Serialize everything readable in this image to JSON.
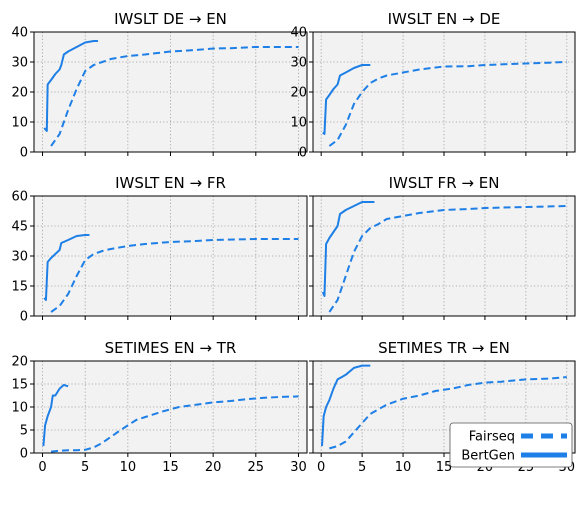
{
  "figure": {
    "colors": {
      "series": "#1e7fe6",
      "plot_bg": "#f2f2f2",
      "grid": "#9a9a9a"
    },
    "legend": {
      "placement": "lower-right of bottom-right panel",
      "entries": [
        {
          "label": "Fairseq",
          "style": "dashed"
        },
        {
          "label": "BertGen",
          "style": "solid"
        }
      ]
    }
  },
  "chart_data": [
    {
      "type": "line",
      "title": "IWSLT DE → EN",
      "xlim": [
        -1,
        31
      ],
      "ylim": [
        0,
        40
      ],
      "yticks": [
        0,
        10,
        20,
        30,
        40
      ],
      "xticks": [
        0,
        5,
        10,
        15,
        20,
        25,
        30
      ],
      "show_xtick_labels": false,
      "grid": true,
      "series": [
        {
          "name": "BertGen",
          "style": "solid",
          "x": [
            0.2,
            0.5,
            0.6,
            1.0,
            1.5,
            2.0,
            2.2,
            2.5,
            3.0,
            4.0,
            5.0,
            6.0,
            6.5
          ],
          "y": [
            8,
            7,
            22.5,
            24,
            26,
            27.5,
            29,
            32.5,
            33.5,
            35,
            36.5,
            37,
            37
          ]
        },
        {
          "name": "Fairseq",
          "style": "dashed",
          "x": [
            1,
            2,
            3,
            4,
            5,
            6,
            7,
            8,
            10,
            12,
            15,
            18,
            20,
            22,
            25,
            28,
            30
          ],
          "y": [
            2,
            6,
            14,
            21,
            27,
            29,
            30,
            31,
            32,
            32.5,
            33.5,
            34,
            34.5,
            34.6,
            35,
            35,
            35
          ]
        }
      ]
    },
    {
      "type": "line",
      "title": "IWSLT EN → DE",
      "xlim": [
        -1,
        31
      ],
      "ylim": [
        0,
        40
      ],
      "yticks": [
        0,
        10,
        20,
        30,
        40
      ],
      "xticks": [
        0,
        5,
        10,
        15,
        20,
        25,
        30
      ],
      "show_xtick_labels": false,
      "grid": true,
      "series": [
        {
          "name": "BertGen",
          "style": "solid",
          "x": [
            0.2,
            0.4,
            0.6,
            1.0,
            1.5,
            2.0,
            2.3,
            3.0,
            4.0,
            5.0,
            6.0
          ],
          "y": [
            6.5,
            6,
            17.5,
            19,
            21,
            22.5,
            25.5,
            26.5,
            28,
            29,
            29
          ]
        },
        {
          "name": "Fairseq",
          "style": "dashed",
          "x": [
            1,
            2,
            3,
            4,
            5,
            6,
            7,
            8,
            10,
            12,
            15,
            18,
            20,
            25,
            30
          ],
          "y": [
            2,
            4,
            9,
            16,
            20,
            23,
            24.5,
            25.5,
            26.5,
            27.5,
            28.5,
            28.6,
            29,
            29.5,
            30
          ]
        }
      ]
    },
    {
      "type": "line",
      "title": "IWSLT EN → FR",
      "xlim": [
        -1,
        31
      ],
      "ylim": [
        0,
        60
      ],
      "yticks": [
        0,
        15,
        30,
        45,
        60
      ],
      "xticks": [
        0,
        5,
        10,
        15,
        20,
        25,
        30
      ],
      "show_xtick_labels": false,
      "grid": true,
      "series": [
        {
          "name": "BertGen",
          "style": "solid",
          "x": [
            0.2,
            0.4,
            0.6,
            1.0,
            1.5,
            2.0,
            2.2,
            3.0,
            4.0,
            5.0,
            5.5
          ],
          "y": [
            9,
            8,
            27,
            29,
            31,
            33,
            36.5,
            38,
            40,
            40.5,
            40.5
          ]
        },
        {
          "name": "Fairseq",
          "style": "dashed",
          "x": [
            1,
            2,
            3,
            4,
            5,
            6,
            7,
            8,
            10,
            12,
            15,
            18,
            20,
            25,
            30
          ],
          "y": [
            2,
            5,
            11,
            20,
            28,
            31,
            32.5,
            33.5,
            35,
            36,
            37,
            37.5,
            38,
            38.5,
            38.5
          ]
        }
      ]
    },
    {
      "type": "line",
      "title": "IWSLT FR → EN",
      "xlim": [
        -1,
        31
      ],
      "ylim": [
        0,
        60
      ],
      "yticks": [
        0,
        15,
        30,
        45,
        60
      ],
      "xticks": [
        0,
        5,
        10,
        15,
        20,
        25,
        30
      ],
      "show_xtick_labels": false,
      "show_ytick_labels": false,
      "grid": true,
      "series": [
        {
          "name": "BertGen",
          "style": "solid",
          "x": [
            0.2,
            0.4,
            0.6,
            1.0,
            1.5,
            2.0,
            2.3,
            3.0,
            4.0,
            5.0,
            6.0,
            6.5
          ],
          "y": [
            12,
            10,
            36,
            39,
            42,
            45,
            51,
            53,
            55,
            57,
            57,
            57
          ]
        },
        {
          "name": "Fairseq",
          "style": "dashed",
          "x": [
            1,
            2,
            3,
            4,
            5,
            6,
            7,
            8,
            10,
            12,
            15,
            18,
            20,
            25,
            30
          ],
          "y": [
            2,
            8,
            20,
            32,
            40,
            44,
            46,
            48.5,
            50,
            51.5,
            53,
            53.5,
            54,
            54.5,
            55
          ]
        }
      ]
    },
    {
      "type": "line",
      "title": "SETIMES EN → TR",
      "xlim": [
        -1,
        31
      ],
      "ylim": [
        0,
        20
      ],
      "yticks": [
        0,
        5,
        10,
        15,
        20
      ],
      "xticks": [
        0,
        5,
        10,
        15,
        20,
        25,
        30
      ],
      "show_xtick_labels": true,
      "grid": true,
      "series": [
        {
          "name": "BertGen",
          "style": "solid",
          "x": [
            0.1,
            0.3,
            0.6,
            1.0,
            1.2,
            1.5,
            2.0,
            2.5,
            3.0
          ],
          "y": [
            1.5,
            6,
            8,
            10,
            12.5,
            12.5,
            14,
            14.8,
            14.5
          ]
        },
        {
          "name": "Fairseq",
          "style": "dashed",
          "x": [
            1,
            2,
            3,
            4,
            5,
            6,
            7,
            8,
            9,
            10,
            11,
            12,
            14,
            16,
            18,
            20,
            22,
            24,
            26,
            28,
            30
          ],
          "y": [
            0.3,
            0.5,
            0.6,
            0.6,
            0.7,
            1.2,
            2.2,
            3.5,
            4.8,
            6.0,
            7.2,
            7.8,
            9.0,
            10.0,
            10.5,
            11.0,
            11.3,
            11.7,
            12.0,
            12.2,
            12.3
          ]
        }
      ]
    },
    {
      "type": "line",
      "title": "SETIMES TR → EN",
      "xlim": [
        -1,
        31
      ],
      "ylim": [
        0,
        20
      ],
      "yticks": [
        0,
        5,
        10,
        15,
        20
      ],
      "xticks": [
        0,
        5,
        10,
        15,
        20,
        25,
        30
      ],
      "show_xtick_labels": true,
      "show_ytick_labels": false,
      "grid": true,
      "series": [
        {
          "name": "BertGen",
          "style": "solid",
          "x": [
            0.1,
            0.3,
            0.6,
            1.0,
            1.5,
            2.0,
            2.5,
            3.0,
            4.0,
            5.0,
            6.0
          ],
          "y": [
            1.5,
            8,
            10,
            11.5,
            14,
            16,
            16.5,
            17,
            18.5,
            19,
            19
          ]
        },
        {
          "name": "Fairseq",
          "style": "dashed",
          "x": [
            1,
            2,
            3,
            4,
            5,
            6,
            7,
            8,
            10,
            12,
            14,
            16,
            18,
            20,
            22,
            25,
            28,
            30
          ],
          "y": [
            1.0,
            1.5,
            2.5,
            4.5,
            6.5,
            8.5,
            9.5,
            10.5,
            11.8,
            12.5,
            13.5,
            14.0,
            14.8,
            15.3,
            15.5,
            16.0,
            16.2,
            16.5
          ]
        }
      ]
    }
  ]
}
